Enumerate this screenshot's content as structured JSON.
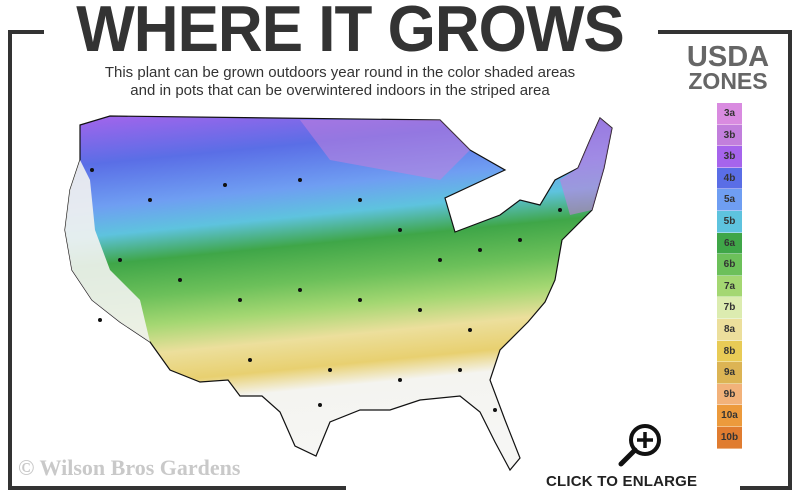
{
  "header": {
    "title": "WHERE IT GROWS",
    "subtitle_line1": "This plant can be grown outdoors year round in the color shaded areas",
    "subtitle_line2": "and in pots that can be overwintered indoors in the striped area"
  },
  "legend": {
    "title_line1": "USDA",
    "title_line2": "ZONES",
    "zones": [
      {
        "label": "3a",
        "color": "#d98be0"
      },
      {
        "label": "3b",
        "color": "#c27fdc"
      },
      {
        "label": "3b",
        "color": "#a664ec"
      },
      {
        "label": "4b",
        "color": "#5a6ee6"
      },
      {
        "label": "5a",
        "color": "#6f9ef2"
      },
      {
        "label": "5b",
        "color": "#5ec3de"
      },
      {
        "label": "6a",
        "color": "#3fa648"
      },
      {
        "label": "6b",
        "color": "#6cc05a"
      },
      {
        "label": "7a",
        "color": "#a4d772"
      },
      {
        "label": "7b",
        "color": "#dcecb0"
      },
      {
        "label": "8a",
        "color": "#ecdf9c"
      },
      {
        "label": "8b",
        "color": "#e8cb56"
      },
      {
        "label": "9a",
        "color": "#dcb454"
      },
      {
        "label": "9b",
        "color": "#f2b27a"
      },
      {
        "label": "10a",
        "color": "#ec9a3c"
      },
      {
        "label": "10b",
        "color": "#e07c30"
      }
    ]
  },
  "footer": {
    "copyright": "© Wilson Bros Gardens",
    "enlarge_label": "CLICK TO ENLARGE",
    "enlarge_icon": "zoom-in-icon"
  }
}
